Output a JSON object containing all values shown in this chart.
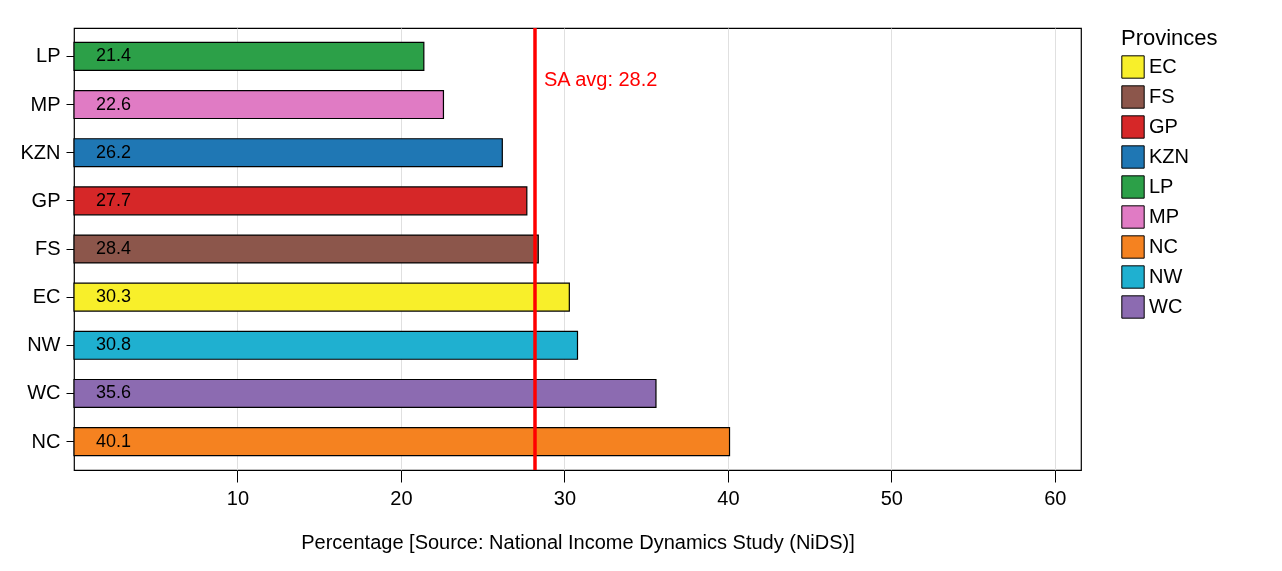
{
  "chart_data": {
    "type": "bar",
    "orientation": "horizontal",
    "stacked": true,
    "xlabel": "Percentage [Source: National Income Dynamics Study (NiDS)]",
    "legend_title": "Provinces",
    "legend": "right",
    "categories": [
      "LP",
      "MP",
      "KZN",
      "GP",
      "FS",
      "EC",
      "NW",
      "WC",
      "NC"
    ],
    "series": [
      {
        "name": "EC",
        "color": "#f8ef2a",
        "values": [
          null,
          null,
          null,
          null,
          null,
          30.3,
          null,
          null,
          null
        ]
      },
      {
        "name": "FS",
        "color": "#8c564b",
        "values": [
          null,
          null,
          null,
          null,
          28.4,
          null,
          null,
          null,
          null
        ]
      },
      {
        "name": "GP",
        "color": "#d62728",
        "values": [
          null,
          null,
          null,
          27.7,
          null,
          null,
          null,
          null,
          null
        ]
      },
      {
        "name": "KZN",
        "color": "#1f77b4",
        "values": [
          null,
          null,
          26.2,
          null,
          null,
          null,
          null,
          null,
          null
        ]
      },
      {
        "name": "LP",
        "color": "#2ca048",
        "values": [
          21.4,
          null,
          null,
          null,
          null,
          null,
          null,
          null,
          null
        ]
      },
      {
        "name": "MP",
        "color": "#e07bc4",
        "values": [
          null,
          22.6,
          null,
          null,
          null,
          null,
          null,
          null,
          null
        ]
      },
      {
        "name": "NC",
        "color": "#f58220",
        "values": [
          null,
          null,
          null,
          null,
          null,
          null,
          null,
          null,
          40.1
        ]
      },
      {
        "name": "NW",
        "color": "#1fb0d0",
        "values": [
          null,
          null,
          null,
          null,
          null,
          null,
          30.8,
          null,
          null
        ]
      },
      {
        "name": "WC",
        "color": "#8c6bb1",
        "values": [
          null,
          null,
          null,
          null,
          null,
          null,
          null,
          35.6,
          null
        ]
      }
    ],
    "data_labels": true,
    "xlim": [
      0,
      61.6
    ],
    "xticks": [
      10,
      20,
      30,
      40,
      50,
      60
    ],
    "grid": "x",
    "ref_lines": [
      {
        "axis": "x",
        "value": 28.2,
        "label": "SA avg: 28.2",
        "color": "#ff0000"
      }
    ]
  }
}
